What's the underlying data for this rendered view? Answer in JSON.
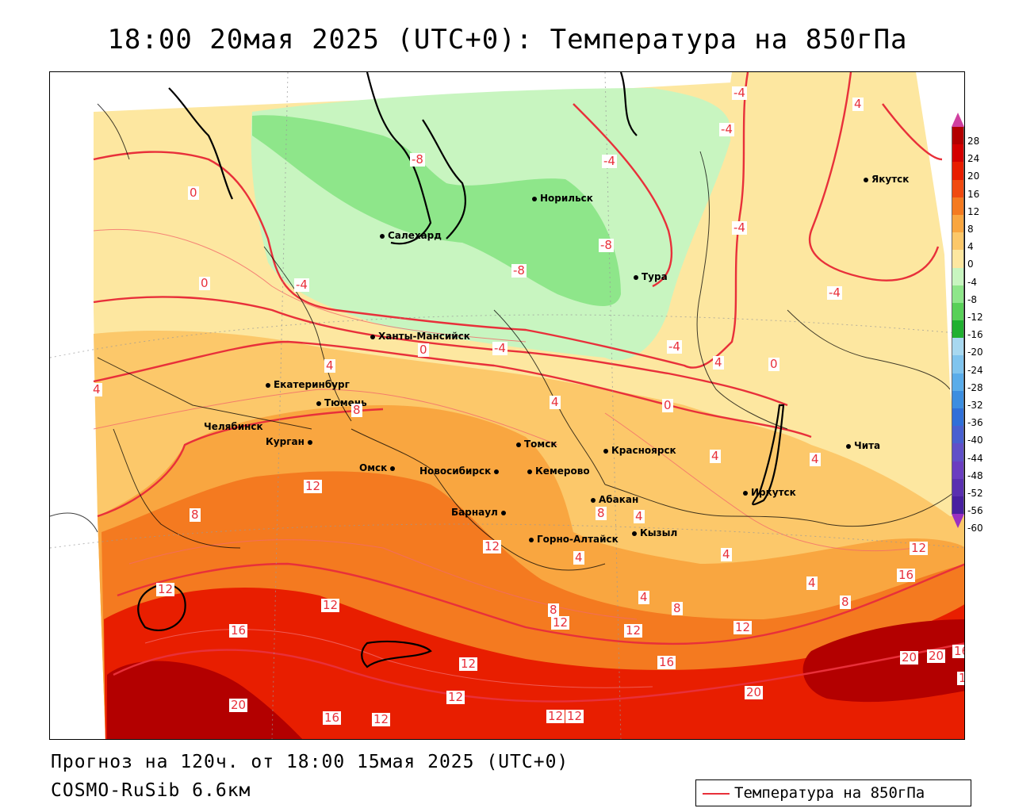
{
  "title": "18:00 20мая 2025 (UTC+0): Температура на 850гПа",
  "footer": {
    "forecast": "Прогноз на 120ч. от 18:00 15мая 2025 (UTC+0)",
    "model": "COSMO-RuSib 6.6км"
  },
  "legend": {
    "label": "Температура на 850гПа",
    "line_color": "#e8303a"
  },
  "colorbar": {
    "ticks": [
      "28",
      "24",
      "20",
      "16",
      "12",
      "8",
      "4",
      "0",
      "-4",
      "-8",
      "-12",
      "-16",
      "-20",
      "-24",
      "-28",
      "-32",
      "-36",
      "-40",
      "-44",
      "-48",
      "-52",
      "-56",
      "-60"
    ],
    "colors": [
      "#b30000",
      "#d40000",
      "#e81e00",
      "#f04a10",
      "#f47a20",
      "#f9a640",
      "#fcc86a",
      "#fde7a0",
      "#c8f5c0",
      "#8ee68a",
      "#58d058",
      "#20b030",
      "#a8d8f0",
      "#80c4ee",
      "#5aacea",
      "#3c8ee0",
      "#3070d8",
      "#4860d0",
      "#6050c8",
      "#6a3ec0",
      "#5a30b0",
      "#4820a0"
    ],
    "top_color": "#d040a0",
    "bottom_color": "#9a30c0"
  },
  "cities": [
    {
      "name": "Якутск"
    },
    {
      "name": "Норильск"
    },
    {
      "name": "Салехард"
    },
    {
      "name": "Тура"
    },
    {
      "name": "Ханты-Мансийск"
    },
    {
      "name": "Екатеринбург"
    },
    {
      "name": "Тюмень"
    },
    {
      "name": "Челябинск"
    },
    {
      "name": "Курган"
    },
    {
      "name": "Томск"
    },
    {
      "name": "Красноярск"
    },
    {
      "name": "Омск"
    },
    {
      "name": "Новосибирск"
    },
    {
      "name": "Кемерово"
    },
    {
      "name": "Иркутск"
    },
    {
      "name": "Чита"
    },
    {
      "name": "Абакан"
    },
    {
      "name": "Барнаул"
    },
    {
      "name": "Кызыл"
    },
    {
      "name": "Горно-Алтайск"
    }
  ],
  "contour_labels": [
    "-4",
    "-4",
    "4",
    "-8",
    "-4",
    "0",
    "-8",
    "-4",
    "-8",
    "-4",
    "0",
    "-4",
    "0",
    "-4",
    "4",
    "-4",
    "0",
    "8",
    "0",
    "4",
    "4",
    "4",
    "4",
    "8",
    "12",
    "12",
    "4",
    "4",
    "8",
    "8",
    "4",
    "4",
    "12",
    "12",
    "16",
    "16",
    "12",
    "12",
    "12",
    "8",
    "12",
    "12",
    "12",
    "16",
    "20",
    "20",
    "20",
    "16",
    "12",
    "12",
    "16",
    "20",
    "16",
    "12",
    "12",
    "12",
    "4",
    "8",
    "4"
  ]
}
